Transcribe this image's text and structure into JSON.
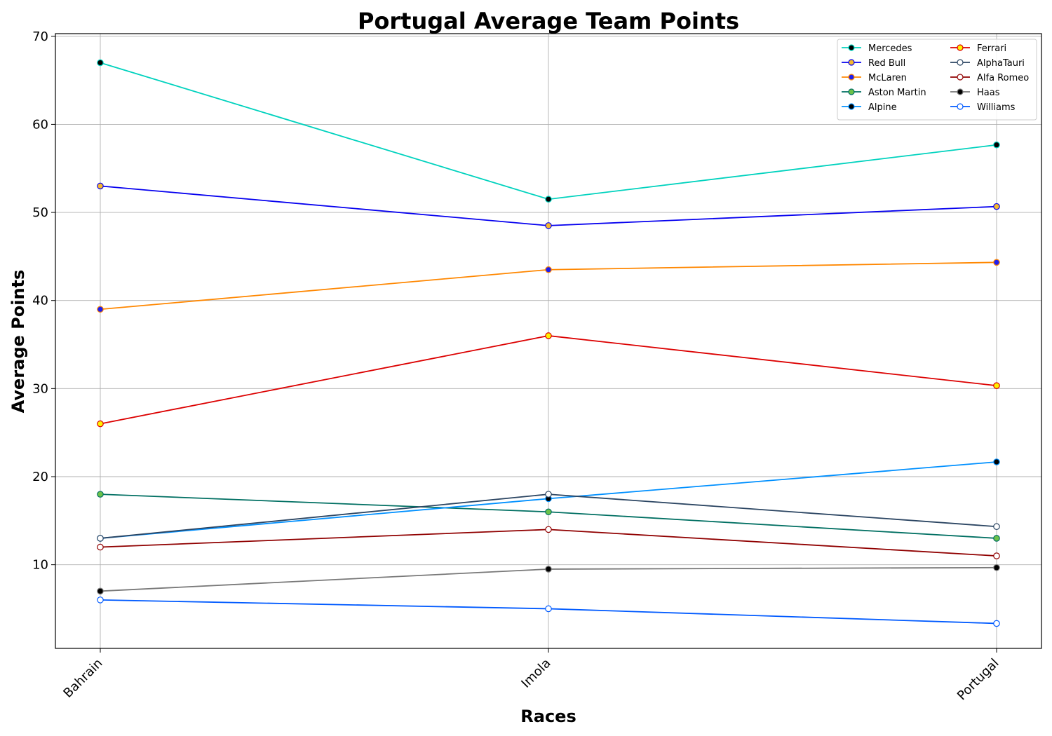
{
  "chart_data": {
    "type": "line",
    "title": "Portugal Average Team Points",
    "xlabel": "Races",
    "ylabel": "Average Points",
    "categories": [
      "Bahrain",
      "Imola",
      "Portugal"
    ],
    "ylim": [
      0.5,
      70.3
    ],
    "yticks": [
      10,
      20,
      30,
      40,
      50,
      60,
      70
    ],
    "grid": true,
    "legend": {
      "position": "top-right",
      "columns": 2
    },
    "series": [
      {
        "name": "Mercedes",
        "values": [
          67,
          51.5,
          57.67
        ],
        "color": "#00d2be",
        "marker_fill": "#000000",
        "marker_edge": "#00d2be"
      },
      {
        "name": "Red Bull",
        "values": [
          53,
          48.5,
          50.67
        ],
        "color": "#0600ef",
        "marker_fill": "#f5b82e",
        "marker_edge": "#0600ef"
      },
      {
        "name": "McLaren",
        "values": [
          39,
          43.5,
          44.33
        ],
        "color": "#ff8700",
        "marker_fill": "#1e1ef0",
        "marker_edge": "#ff8700"
      },
      {
        "name": "Aston Martin",
        "values": [
          18,
          16,
          13
        ],
        "color": "#006f62",
        "marker_fill": "#6cc24a",
        "marker_edge": "#006f62"
      },
      {
        "name": "Alpine",
        "values": [
          13,
          17.5,
          21.67
        ],
        "color": "#0090ff",
        "marker_fill": "#000000",
        "marker_edge": "#0090ff"
      },
      {
        "name": "Ferrari",
        "values": [
          26,
          36,
          30.33
        ],
        "color": "#dc0000",
        "marker_fill": "#fff200",
        "marker_edge": "#dc0000"
      },
      {
        "name": "AlphaTauri",
        "values": [
          13,
          18,
          14.33
        ],
        "color": "#2b4562",
        "marker_fill": "#ffffff",
        "marker_edge": "#2b4562"
      },
      {
        "name": "Alfa Romeo",
        "values": [
          12,
          14,
          11
        ],
        "color": "#900000",
        "marker_fill": "#ffffff",
        "marker_edge": "#900000"
      },
      {
        "name": "Haas",
        "values": [
          7,
          9.5,
          9.67
        ],
        "color": "#787878",
        "marker_fill": "#000000",
        "marker_edge": "#787878"
      },
      {
        "name": "Williams",
        "values": [
          6,
          5,
          3.33
        ],
        "color": "#005aff",
        "marker_fill": "#ffffff",
        "marker_edge": "#005aff"
      }
    ]
  }
}
